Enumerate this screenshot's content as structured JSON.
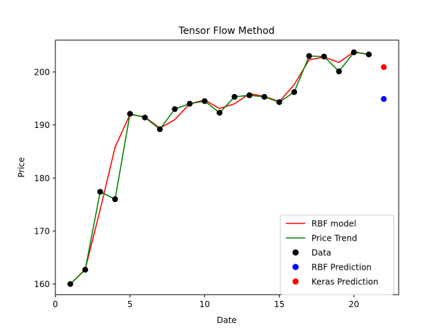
{
  "chart_data": {
    "type": "line",
    "title": "Tensor Flow Method",
    "xlabel": "Date",
    "ylabel": "Price",
    "xlim": [
      0,
      23
    ],
    "ylim": [
      158.0,
      206.0
    ],
    "xticks": [
      0,
      5,
      10,
      15,
      20
    ],
    "yticks": [
      160,
      170,
      180,
      190,
      200
    ],
    "grid": false,
    "legend_position": "lower right",
    "series": [
      {
        "name": "RBF model",
        "kind": "line",
        "color": "#ff0000",
        "x": [
          1,
          2,
          3,
          4,
          5,
          6,
          7,
          8,
          9,
          10,
          11,
          12,
          13,
          14,
          15,
          16,
          17,
          18,
          19,
          20,
          21
        ],
        "y": [
          160.0,
          162.8,
          174.0,
          185.8,
          192.0,
          191.5,
          189.4,
          191.0,
          194.0,
          194.7,
          193.1,
          194.0,
          195.9,
          195.4,
          194.4,
          197.6,
          202.3,
          202.8,
          201.8,
          203.8,
          203.3
        ]
      },
      {
        "name": "Price Trend",
        "kind": "line",
        "color": "#008000",
        "x": [
          1,
          2,
          3,
          4,
          5,
          6,
          7,
          8,
          9,
          10,
          11,
          12,
          13,
          14,
          15,
          16,
          17,
          18,
          19,
          20,
          21
        ],
        "y": [
          160.0,
          162.7,
          177.4,
          176.0,
          192.1,
          191.4,
          189.2,
          193.0,
          194.0,
          194.5,
          192.3,
          195.3,
          195.6,
          195.3,
          194.3,
          196.2,
          203.0,
          202.9,
          200.1,
          203.7,
          203.3
        ]
      },
      {
        "name": "Data",
        "kind": "scatter",
        "color": "#000000",
        "x": [
          1,
          2,
          3,
          4,
          5,
          6,
          7,
          8,
          9,
          10,
          11,
          12,
          13,
          14,
          15,
          16,
          17,
          18,
          19,
          20,
          21
        ],
        "y": [
          160.0,
          162.7,
          177.4,
          176.0,
          192.1,
          191.4,
          189.2,
          193.0,
          194.0,
          194.5,
          192.3,
          195.3,
          195.6,
          195.3,
          194.3,
          196.2,
          203.0,
          202.9,
          200.1,
          203.7,
          203.3
        ]
      },
      {
        "name": "RBF Prediction",
        "kind": "scatter",
        "color": "#0000ff",
        "x": [
          22
        ],
        "y": [
          194.9
        ]
      },
      {
        "name": "Keras Prediction",
        "kind": "scatter",
        "color": "#ff0000",
        "x": [
          22
        ],
        "y": [
          200.9
        ]
      }
    ]
  }
}
